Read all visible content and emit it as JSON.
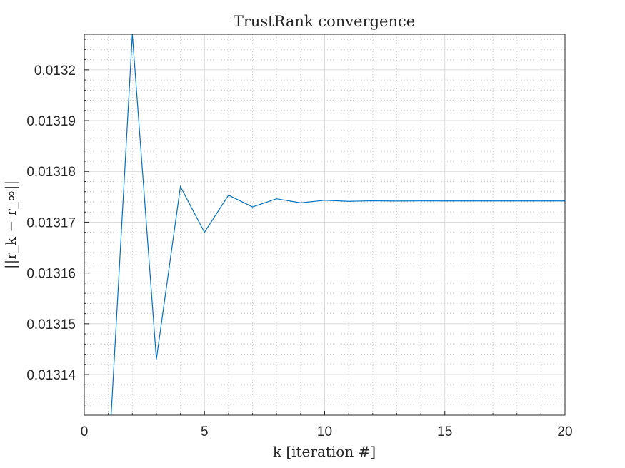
{
  "chart_data": {
    "type": "line",
    "title": "TrustRank convergence",
    "xlabel": "k [iteration #]",
    "ylabel": "||r_k − r_∞||",
    "xlim": [
      0,
      20
    ],
    "ylim": [
      0.013132,
      0.013207
    ],
    "xticks": [
      0,
      5,
      10,
      15,
      20
    ],
    "yticks": [
      0.01314,
      0.01315,
      0.01316,
      0.01317,
      0.01318,
      0.01319,
      0.0132
    ],
    "ytick_labels": [
      "0.01314",
      "0.01315",
      "0.01316",
      "0.01317",
      "0.01318",
      "0.01319",
      "0.0132"
    ],
    "grid": "major and minor",
    "series": [
      {
        "color": "#0072bd",
        "x": [
          1,
          2,
          3,
          4,
          5,
          6,
          7,
          8,
          9,
          10,
          11,
          12,
          13,
          14,
          15,
          16,
          17,
          18,
          19,
          20
        ],
        "y": [
          0.013122,
          0.013207,
          0.013143,
          0.013177,
          0.013168,
          0.0131753,
          0.013173,
          0.0131746,
          0.0131738,
          0.0131743,
          0.0131741,
          0.0131742,
          0.01317415,
          0.01317418,
          0.01317417,
          0.01317417,
          0.01317417,
          0.01317417,
          0.01317417,
          0.01317417
        ]
      }
    ]
  }
}
